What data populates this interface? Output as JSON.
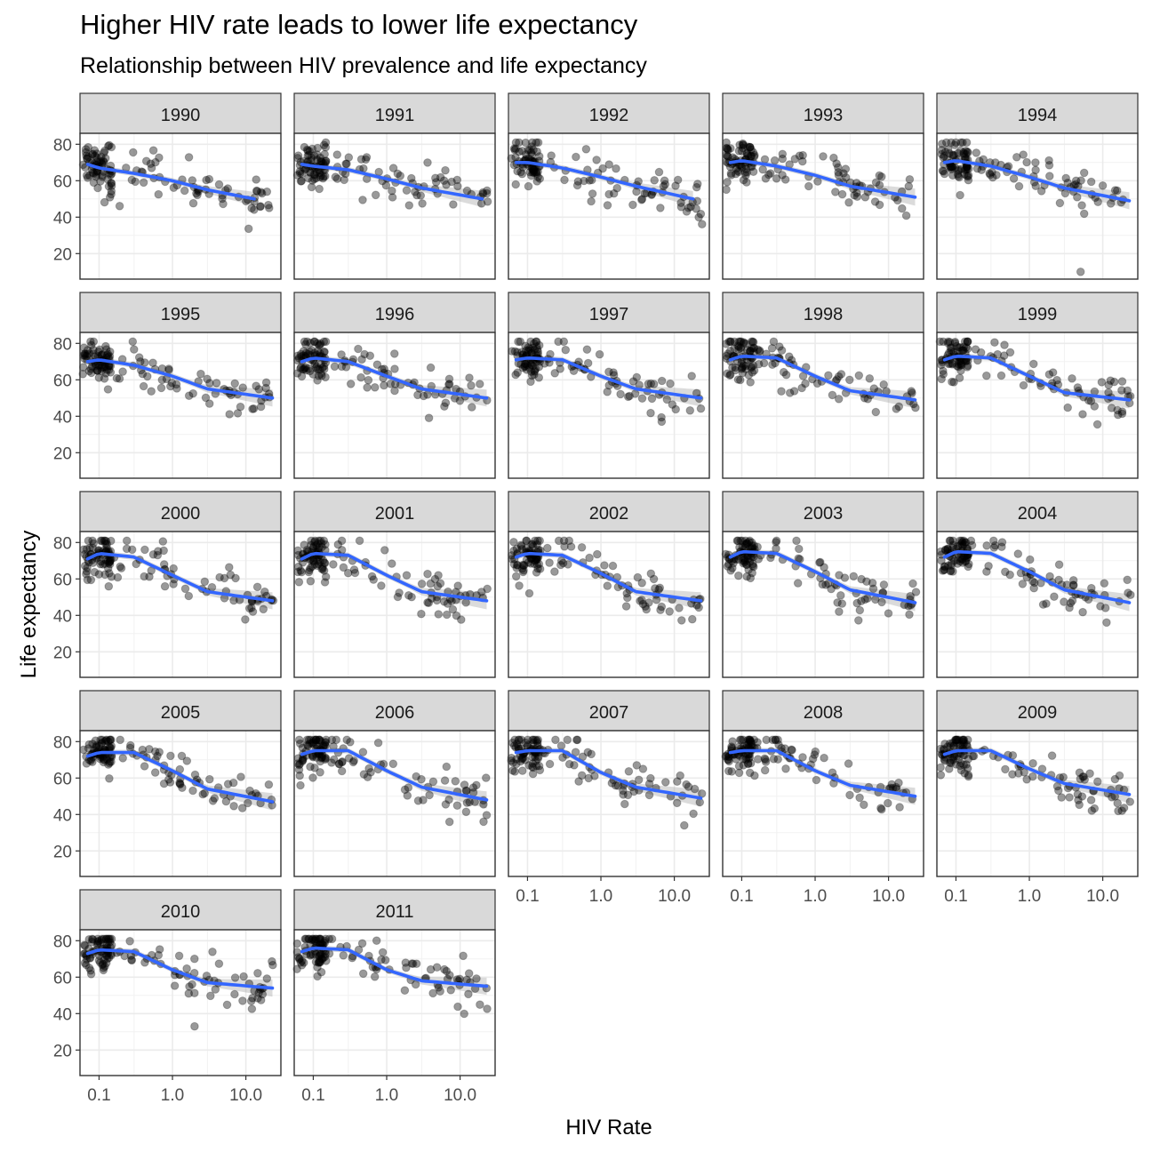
{
  "chart_data": {
    "type": "scatter",
    "title": "Higher HIV rate leads to lower life expectancy",
    "subtitle": "Relationship between HIV prevalence and life expectancy",
    "xlabel": "HIV Rate",
    "ylabel": "Life expectancy",
    "x_scale": "log10",
    "xlim": [
      0.055,
      30
    ],
    "ylim": [
      6,
      86
    ],
    "x_ticks": [
      0.1,
      1.0,
      10.0
    ],
    "x_tick_labels": [
      "0.1",
      "1.0",
      "10.0"
    ],
    "y_ticks": [
      20,
      40,
      60,
      80
    ],
    "y_tick_labels": [
      "20",
      "40",
      "60",
      "80"
    ],
    "point_color": "#000000",
    "point_alpha": 0.4,
    "smooth_color": "#3366FF",
    "band_color": "#999999",
    "grid": true,
    "facet_ncol": 5,
    "panels": [
      {
        "year": "1990",
        "trend": [
          [
            0.07,
            69
          ],
          [
            0.1,
            67
          ],
          [
            0.3,
            64
          ],
          [
            1,
            60
          ],
          [
            3,
            55
          ],
          [
            13,
            50
          ]
        ]
      },
      {
        "year": "1991",
        "trend": [
          [
            0.07,
            69
          ],
          [
            0.1,
            68
          ],
          [
            0.3,
            66
          ],
          [
            1,
            61
          ],
          [
            3,
            56
          ],
          [
            20,
            50
          ]
        ]
      },
      {
        "year": "1992",
        "trend": [
          [
            0.07,
            70
          ],
          [
            0.1,
            70
          ],
          [
            0.3,
            67
          ],
          [
            1,
            62
          ],
          [
            3,
            57
          ],
          [
            18,
            50
          ]
        ]
      },
      {
        "year": "1993",
        "trend": [
          [
            0.07,
            70
          ],
          [
            0.1,
            71
          ],
          [
            0.3,
            68
          ],
          [
            1,
            63
          ],
          [
            3,
            57
          ],
          [
            23,
            51
          ]
        ]
      },
      {
        "year": "1994",
        "trend": [
          [
            0.07,
            70
          ],
          [
            0.1,
            71
          ],
          [
            0.3,
            68
          ],
          [
            1,
            62
          ],
          [
            3,
            56
          ],
          [
            23,
            49
          ]
        ]
      },
      {
        "year": "1995",
        "trend": [
          [
            0.07,
            70
          ],
          [
            0.1,
            71
          ],
          [
            0.3,
            68
          ],
          [
            1,
            62
          ],
          [
            3,
            55
          ],
          [
            23,
            50
          ]
        ]
      },
      {
        "year": "1996",
        "trend": [
          [
            0.07,
            70
          ],
          [
            0.1,
            72
          ],
          [
            0.3,
            70
          ],
          [
            1,
            62
          ],
          [
            3,
            55
          ],
          [
            23,
            50
          ]
        ]
      },
      {
        "year": "1997",
        "trend": [
          [
            0.07,
            71
          ],
          [
            0.1,
            72
          ],
          [
            0.3,
            71
          ],
          [
            1,
            62
          ],
          [
            3,
            55
          ],
          [
            23,
            50
          ]
        ]
      },
      {
        "year": "1998",
        "trend": [
          [
            0.07,
            71
          ],
          [
            0.1,
            73
          ],
          [
            0.3,
            72
          ],
          [
            1,
            62
          ],
          [
            3,
            54
          ],
          [
            23,
            49
          ]
        ]
      },
      {
        "year": "1999",
        "trend": [
          [
            0.07,
            71
          ],
          [
            0.1,
            73
          ],
          [
            0.3,
            72
          ],
          [
            1,
            62
          ],
          [
            3,
            53
          ],
          [
            23,
            49
          ]
        ]
      },
      {
        "year": "2000",
        "trend": [
          [
            0.07,
            71
          ],
          [
            0.1,
            74
          ],
          [
            0.3,
            72
          ],
          [
            1,
            62
          ],
          [
            3,
            53
          ],
          [
            23,
            48
          ]
        ]
      },
      {
        "year": "2001",
        "trend": [
          [
            0.07,
            71
          ],
          [
            0.1,
            74
          ],
          [
            0.3,
            73
          ],
          [
            1,
            62
          ],
          [
            3,
            53
          ],
          [
            23,
            48
          ]
        ]
      },
      {
        "year": "2002",
        "trend": [
          [
            0.07,
            72
          ],
          [
            0.1,
            74
          ],
          [
            0.3,
            73
          ],
          [
            1,
            63
          ],
          [
            3,
            53
          ],
          [
            23,
            48
          ]
        ]
      },
      {
        "year": "2003",
        "trend": [
          [
            0.07,
            72
          ],
          [
            0.1,
            75
          ],
          [
            0.3,
            74
          ],
          [
            1,
            64
          ],
          [
            3,
            54
          ],
          [
            23,
            47
          ]
        ]
      },
      {
        "year": "2004",
        "trend": [
          [
            0.07,
            72
          ],
          [
            0.1,
            75
          ],
          [
            0.3,
            74
          ],
          [
            1,
            64
          ],
          [
            3,
            54
          ],
          [
            23,
            47
          ]
        ]
      },
      {
        "year": "2005",
        "trend": [
          [
            0.07,
            72
          ],
          [
            0.1,
            74
          ],
          [
            0.3,
            74
          ],
          [
            1,
            64
          ],
          [
            3,
            54
          ],
          [
            23,
            47
          ]
        ]
      },
      {
        "year": "2006",
        "trend": [
          [
            0.07,
            73
          ],
          [
            0.1,
            75
          ],
          [
            0.3,
            75
          ],
          [
            1,
            64
          ],
          [
            3,
            55
          ],
          [
            23,
            48
          ]
        ]
      },
      {
        "year": "2007",
        "trend": [
          [
            0.07,
            74
          ],
          [
            0.1,
            75
          ],
          [
            0.3,
            75
          ],
          [
            1,
            63
          ],
          [
            3,
            55
          ],
          [
            23,
            49
          ]
        ]
      },
      {
        "year": "2008",
        "trend": [
          [
            0.07,
            74
          ],
          [
            0.1,
            75
          ],
          [
            0.3,
            75
          ],
          [
            1,
            64
          ],
          [
            3,
            56
          ],
          [
            23,
            50
          ]
        ]
      },
      {
        "year": "2009",
        "trend": [
          [
            0.07,
            73
          ],
          [
            0.1,
            75
          ],
          [
            0.3,
            75
          ],
          [
            1,
            65
          ],
          [
            3,
            57
          ],
          [
            23,
            51
          ]
        ]
      },
      {
        "year": "2010",
        "trend": [
          [
            0.07,
            73
          ],
          [
            0.1,
            75
          ],
          [
            0.3,
            74
          ],
          [
            1,
            64
          ],
          [
            3,
            57
          ],
          [
            23,
            54
          ]
        ]
      },
      {
        "year": "2011",
        "trend": [
          [
            0.07,
            74
          ],
          [
            0.1,
            76
          ],
          [
            0.3,
            75
          ],
          [
            1,
            64
          ],
          [
            3,
            58
          ],
          [
            23,
            55
          ]
        ]
      }
    ],
    "outliers": [
      {
        "year": "1994",
        "x": 5,
        "y": 10
      },
      {
        "year": "2010",
        "x": 2,
        "y": 33
      }
    ]
  }
}
